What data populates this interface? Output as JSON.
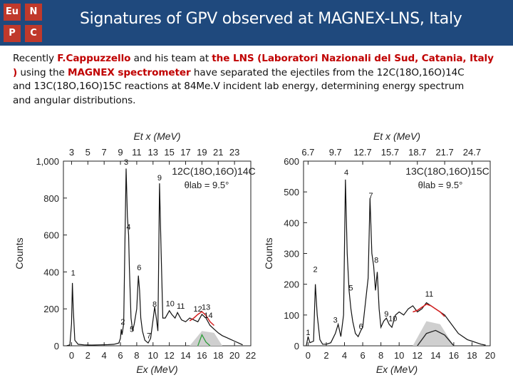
{
  "header": {
    "title": "Signatures of GPV observed at MAGNEX-LNS, Italy",
    "logo": {
      "tl": "Eu",
      "tr": "N",
      "bl": "P",
      "br": "C"
    },
    "bg_color": "#1f497d",
    "accent_color": "#c0392b"
  },
  "paragraph": {
    "p1": "Recently ",
    "person": "F.Cappuzzello",
    "p2": " and his team at ",
    "lab": "the LNS (Laboratori Nazionali del Sud, Catania, Italy",
    "p3": ")",
    "p4": " using the ",
    "spectrometer": "MAGNEX spectrometer",
    "p5": " have separated the ejectiles from the 12C(18O,16O)14C",
    "line3": "and 13C(18O,16O)15C reactions at 84Me.V incident lab energy, determining energy spectrum",
    "line4": "and angular distributions."
  },
  "chart_data": [
    {
      "type": "line",
      "reaction_label": "12C(18O,16O)14C",
      "angle_label": "θlab = 9.5°",
      "xlabel": "Ex (MeV)",
      "top_xlabel": "Et x (MeV)",
      "ylabel": "Counts",
      "xlim": [
        -1,
        22
      ],
      "ylim": [
        0,
        1000
      ],
      "x_ticks": [
        "0",
        "2",
        "4",
        "6",
        "8",
        "10",
        "12",
        "14",
        "16",
        "18",
        "20",
        "22"
      ],
      "y_ticks": [
        "0",
        "200",
        "400",
        "600",
        "800",
        "1,000"
      ],
      "top_ticks": [
        "3",
        "5",
        "7",
        "9",
        "11",
        "13",
        "15",
        "17",
        "19",
        "21",
        "23"
      ],
      "peak_labels": [
        {
          "text": "1",
          "x": 0.2,
          "y": 380
        },
        {
          "text": "2",
          "x": 6.3,
          "y": 115
        },
        {
          "text": "3",
          "x": 6.7,
          "y": 980
        },
        {
          "text": "4",
          "x": 7.0,
          "y": 630
        },
        {
          "text": "5",
          "x": 7.4,
          "y": 75
        },
        {
          "text": "6",
          "x": 8.3,
          "y": 410
        },
        {
          "text": "7",
          "x": 9.5,
          "y": 40
        },
        {
          "text": "8",
          "x": 10.2,
          "y": 210
        },
        {
          "text": "9",
          "x": 10.8,
          "y": 895
        },
        {
          "text": "10",
          "x": 12.1,
          "y": 215
        },
        {
          "text": "11",
          "x": 13.4,
          "y": 200
        },
        {
          "text": "12",
          "x": 15.5,
          "y": 185
        },
        {
          "text": "13",
          "x": 16.5,
          "y": 195
        },
        {
          "text": "14",
          "x": 16.8,
          "y": 150
        }
      ],
      "series": [
        {
          "name": "spectrum",
          "x": [
            -0.6,
            -0.2,
            0.0,
            0.1,
            0.2,
            0.4,
            0.8,
            1.5,
            2.5,
            3.5,
            4.5,
            5.2,
            5.8,
            6.0,
            6.1,
            6.2,
            6.4,
            6.55,
            6.7,
            6.85,
            7.0,
            7.1,
            7.3,
            7.5,
            7.7,
            8.0,
            8.2,
            8.35,
            8.5,
            8.7,
            9.0,
            9.4,
            9.7,
            10.0,
            10.2,
            10.4,
            10.6,
            10.8,
            11.0,
            11.2,
            11.5,
            12.0,
            12.3,
            12.7,
            13.0,
            13.5,
            14.0,
            14.5,
            15.0,
            15.5,
            16.0,
            16.5,
            17.0,
            17.5,
            18.0,
            18.5,
            19.0,
            19.5,
            20.0,
            20.5,
            21.0
          ],
          "y": [
            0,
            5,
            120,
            340,
            210,
            30,
            8,
            5,
            4,
            5,
            6,
            8,
            15,
            40,
            90,
            60,
            120,
            550,
            960,
            700,
            600,
            420,
            150,
            80,
            120,
            200,
            380,
            300,
            150,
            80,
            30,
            15,
            40,
            140,
            210,
            150,
            80,
            880,
            500,
            150,
            150,
            190,
            170,
            150,
            180,
            140,
            130,
            150,
            140,
            130,
            170,
            150,
            110,
            90,
            70,
            55,
            45,
            35,
            25,
            15,
            5
          ]
        },
        {
          "name": "fit",
          "x": [
            14.5,
            15.0,
            15.5,
            16.0,
            16.5,
            17.0,
            17.5
          ],
          "y": [
            135,
            150,
            170,
            185,
            165,
            130,
            110
          ]
        },
        {
          "name": "background",
          "x": [
            14.5,
            16.0,
            17.5,
            18.5
          ],
          "y": [
            0,
            80,
            70,
            0
          ]
        },
        {
          "name": "component",
          "x": [
            15.5,
            16.0,
            16.5,
            17.0
          ],
          "y": [
            0,
            60,
            20,
            0
          ]
        }
      ]
    },
    {
      "type": "line",
      "reaction_label": "13C(18O,16O)15C",
      "angle_label": "θlab = 9.5°",
      "xlabel": "Ex (MeV)",
      "top_xlabel": "Et x (MeV)",
      "ylabel": "Counts",
      "xlim": [
        -0.5,
        20
      ],
      "ylim": [
        0,
        600
      ],
      "x_ticks": [
        "0",
        "2",
        "4",
        "6",
        "8",
        "10",
        "12",
        "14",
        "16",
        "18",
        "20"
      ],
      "y_ticks": [
        "0",
        "100",
        "200",
        "300",
        "400",
        "500",
        "600"
      ],
      "top_ticks": [
        "6.7",
        "9.7",
        "12.7",
        "15.7",
        "18.7",
        "21.7",
        "24.7"
      ],
      "peak_labels": [
        {
          "text": "1",
          "x": 0.0,
          "y": 35
        },
        {
          "text": "2",
          "x": 0.8,
          "y": 240
        },
        {
          "text": "3",
          "x": 3.0,
          "y": 75
        },
        {
          "text": "4",
          "x": 4.2,
          "y": 555
        },
        {
          "text": "5",
          "x": 4.7,
          "y": 180
        },
        {
          "text": "6",
          "x": 5.8,
          "y": 55
        },
        {
          "text": "7",
          "x": 6.9,
          "y": 480
        },
        {
          "text": "8",
          "x": 7.5,
          "y": 270
        },
        {
          "text": "9",
          "x": 8.6,
          "y": 95
        },
        {
          "text": "10",
          "x": 9.3,
          "y": 80
        },
        {
          "text": "11",
          "x": 13.3,
          "y": 160
        }
      ],
      "series": [
        {
          "name": "spectrum",
          "x": [
            -0.2,
            0.0,
            0.2,
            0.6,
            0.8,
            1.0,
            1.3,
            1.6,
            2.0,
            2.5,
            3.0,
            3.3,
            3.6,
            3.9,
            4.1,
            4.3,
            4.5,
            4.7,
            4.9,
            5.2,
            5.5,
            5.8,
            6.0,
            6.3,
            6.6,
            6.8,
            7.0,
            7.2,
            7.4,
            7.6,
            7.8,
            8.0,
            8.3,
            8.6,
            8.9,
            9.2,
            9.6,
            10.0,
            10.5,
            11.0,
            11.5,
            12.0,
            12.5,
            13.0,
            13.5,
            14.0,
            14.5,
            15.0,
            15.5,
            16.0,
            16.5,
            17.0,
            17.5,
            18.0,
            18.5,
            19.0,
            19.5
          ],
          "y": [
            0,
            30,
            10,
            15,
            200,
            100,
            20,
            5,
            5,
            10,
            40,
            70,
            30,
            100,
            540,
            300,
            180,
            120,
            80,
            40,
            30,
            50,
            60,
            140,
            220,
            480,
            300,
            260,
            180,
            240,
            120,
            60,
            80,
            90,
            70,
            60,
            100,
            110,
            100,
            120,
            130,
            110,
            120,
            140,
            130,
            120,
            110,
            100,
            80,
            60,
            40,
            30,
            20,
            15,
            10,
            5,
            2
          ]
        },
        {
          "name": "fit",
          "x": [
            11.5,
            12.0,
            12.5,
            13.0,
            13.5,
            14.0,
            14.5,
            15.0
          ],
          "y": [
            110,
            115,
            125,
            135,
            130,
            120,
            110,
            95
          ]
        },
        {
          "name": "background",
          "x": [
            11.5,
            13.0,
            14.5,
            16.0
          ],
          "y": [
            0,
            80,
            70,
            0
          ]
        },
        {
          "name": "component",
          "x": [
            12.0,
            13.0,
            14.0,
            15.0,
            16.0
          ],
          "y": [
            0,
            40,
            50,
            35,
            0
          ]
        }
      ]
    }
  ]
}
